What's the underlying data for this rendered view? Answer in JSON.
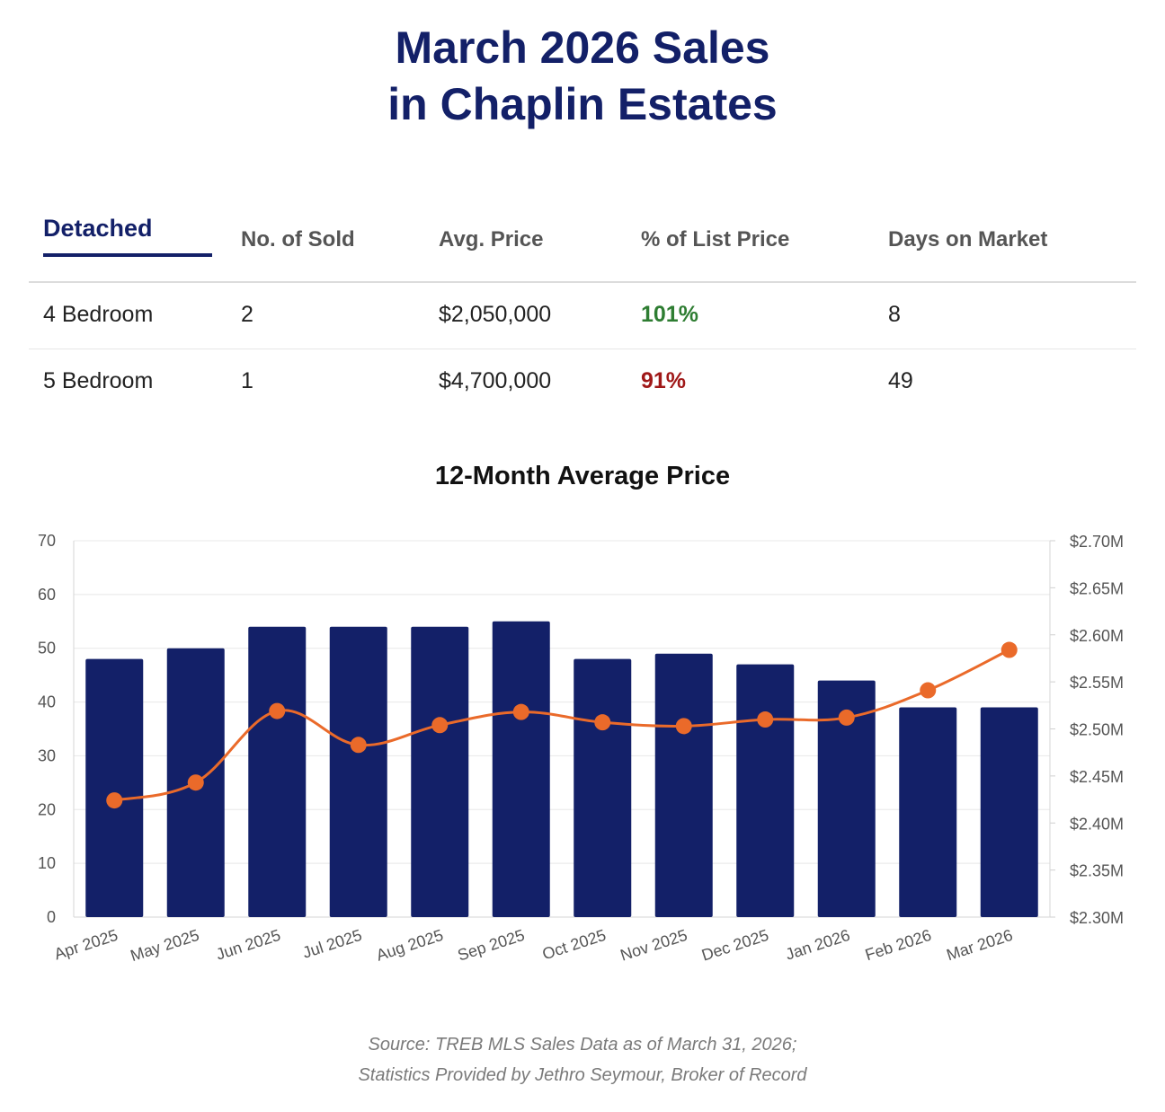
{
  "title": {
    "line1": "March 2026 Sales",
    "line2": "in Chaplin Estates"
  },
  "stats": {
    "tab": "Detached",
    "headers": [
      "No. of Sold",
      "Avg. Price",
      "% of List Price",
      "Days on Market"
    ],
    "rows": [
      {
        "type": "4 Bedroom",
        "sold": "2",
        "price": "$2,050,000",
        "pct": "101%",
        "pct_status": "above",
        "days": "8"
      },
      {
        "type": "5 Bedroom",
        "sold": "1",
        "price": "$4,700,000",
        "pct": "91%",
        "pct_status": "below",
        "days": "49"
      }
    ]
  },
  "colors": {
    "brand_navy": "#132068",
    "line_orange": "#ea6a2a",
    "good_green": "#2e7d32",
    "bad_red": "#a01818"
  },
  "chart_data": {
    "type": "bar",
    "title": "12-Month Average Price",
    "categories": [
      "Apr 2025",
      "May 2025",
      "Jun 2025",
      "Jul 2025",
      "Aug 2025",
      "Sep 2025",
      "Oct 2025",
      "Nov 2025",
      "Dec 2025",
      "Jan 2026",
      "Feb 2026",
      "Mar 2026"
    ],
    "series": [
      {
        "type": "bar",
        "axis": "left",
        "values": [
          48,
          50,
          54,
          54,
          54,
          55,
          48,
          49,
          47,
          44,
          39,
          39
        ]
      },
      {
        "type": "line",
        "axis": "right",
        "values": [
          2424000,
          2443000,
          2519000,
          2483000,
          2504000,
          2518000,
          2507000,
          2503000,
          2510000,
          2512000,
          2541000,
          2584000
        ]
      }
    ],
    "ylim_left": [
      0,
      70
    ],
    "yticks_left": [
      "0",
      "10",
      "20",
      "30",
      "40",
      "50",
      "60",
      "70"
    ],
    "ylim_right": [
      2300000,
      2700000
    ],
    "yticks_right": [
      "$2.30M",
      "$2.35M",
      "$2.40M",
      "$2.45M",
      "$2.50M",
      "$2.55M",
      "$2.60M",
      "$2.65M",
      "$2.70M"
    ],
    "grid": true,
    "legend": "none"
  },
  "source": {
    "line1": "Source: TREB MLS Sales Data as of March 31, 2026;",
    "line2": "Statistics Provided by Jethro Seymour, Broker of Record"
  }
}
